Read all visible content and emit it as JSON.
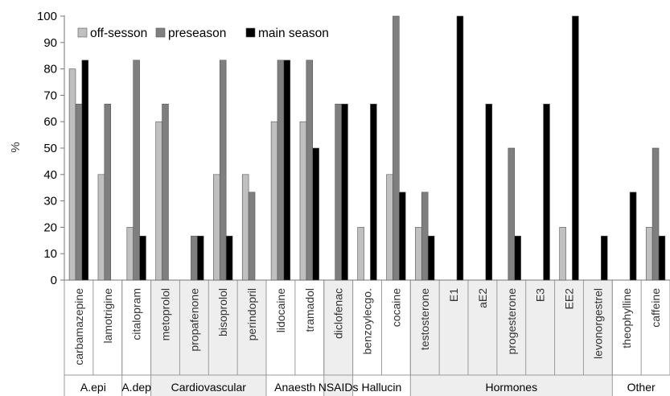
{
  "chart_data": {
    "type": "bar",
    "ylabel": "%",
    "ylim": [
      0,
      100
    ],
    "yticks": [
      0,
      10,
      20,
      30,
      40,
      50,
      60,
      70,
      80,
      90,
      100
    ],
    "grid": false,
    "legend_position": "top-left",
    "categories": [
      "carbamazepine",
      "lamotrigine",
      "citalopram",
      "metoprolol",
      "propafenone",
      "bisoprolol",
      "perindopril",
      "lidocaine",
      "tramadol",
      "diclofenac",
      "benzoylecgo.",
      "cocaine",
      "testosterone",
      "E1",
      "aE2",
      "progesterone",
      "E3",
      "EE2",
      "levonorgestrel",
      "theophylline",
      "caffeine"
    ],
    "series": [
      {
        "name": "off-sesson",
        "color": "#c0c0c0",
        "values": [
          80,
          40,
          20,
          60,
          0,
          40,
          40,
          60,
          60,
          0,
          20,
          40,
          20,
          0,
          0,
          0,
          0,
          20,
          0,
          0,
          20
        ]
      },
      {
        "name": "preseason",
        "color": "#7f7f7f",
        "values": [
          66.7,
          66.7,
          83.3,
          66.7,
          16.7,
          83.3,
          33.3,
          83.3,
          83.3,
          66.7,
          0,
          100,
          33.3,
          0,
          0,
          50,
          0,
          0,
          0,
          0,
          50
        ]
      },
      {
        "name": "main season",
        "color": "#000000",
        "values": [
          83.3,
          0,
          16.7,
          0,
          16.7,
          16.7,
          0,
          83.3,
          50,
          66.7,
          66.7,
          33.3,
          16.7,
          100,
          66.7,
          16.7,
          66.7,
          100,
          16.7,
          33.3,
          16.7
        ]
      }
    ],
    "groups": [
      {
        "label": "A.epi",
        "count": 2,
        "shade": "#ffffff"
      },
      {
        "label": "A.dep",
        "count": 1,
        "shade": "#ffffff"
      },
      {
        "label": "Cardiovascular",
        "count": 4,
        "shade": "#eeeeee"
      },
      {
        "label": "Anaesth",
        "count": 2,
        "shade": "#ffffff"
      },
      {
        "label": "NSAIDs",
        "count": 1,
        "shade": "#eeeeee"
      },
      {
        "label": "Hallucin",
        "count": 2,
        "shade": "#ffffff"
      },
      {
        "label": "Hormones",
        "count": 7,
        "shade": "#eeeeee"
      },
      {
        "label": "Other",
        "count": 2,
        "shade": "#ffffff"
      }
    ]
  }
}
